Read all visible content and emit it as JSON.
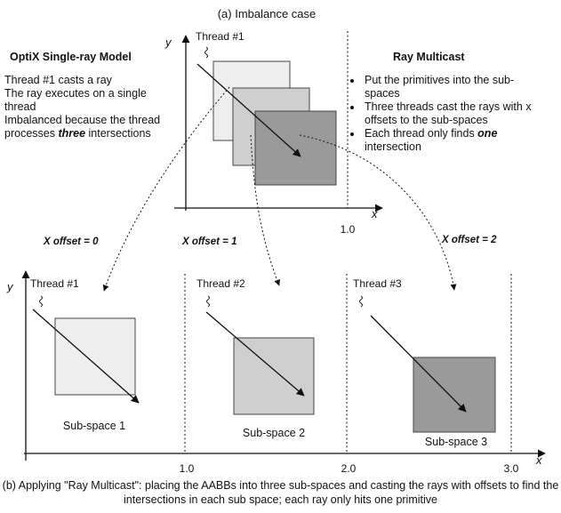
{
  "top_title": "(a) Imbalance case",
  "left_panel": {
    "heading": "OptiX Single-ray Model",
    "line1": "Thread #1 casts a ray",
    "line2": "The ray executes on a single thread",
    "line3_pre": "Imbalanced because the thread processes ",
    "line3_em": "three",
    "line3_post": " intersections"
  },
  "right_panel": {
    "heading": "Ray Multicast",
    "bullet1": "Put the primitives into the sub-spaces",
    "bullet2": "Three threads cast the rays with x offsets to the sub-spaces",
    "bullet3_pre": "Each thread only finds ",
    "bullet3_em": "one",
    "bullet3_post": " intersection"
  },
  "top_plot": {
    "y_axis": "y",
    "x_axis": "x",
    "tick": "1.0",
    "thread": "Thread #1"
  },
  "offsets": [
    "X offset = 0",
    "X offset = 1",
    "X offset = 2"
  ],
  "bottom_plot": {
    "y_axis": "y",
    "x_axis": "x",
    "ticks": [
      "1.0",
      "2.0",
      "3.0"
    ],
    "threads": [
      "Thread #1",
      "Thread #2",
      "Thread #3"
    ],
    "subspaces": [
      "Sub-space 1",
      "Sub-space 2",
      "Sub-space 3"
    ]
  },
  "caption": "(b) Applying \"Ray Multicast\": placing the AABBs into three sub-spaces and casting the rays with offsets to find the intersections in each sub space; each ray only hits one primitive",
  "colors": {
    "box_light": "#eeeeee",
    "box_mid": "#cfcfcf",
    "box_dark": "#9a9a9a"
  }
}
